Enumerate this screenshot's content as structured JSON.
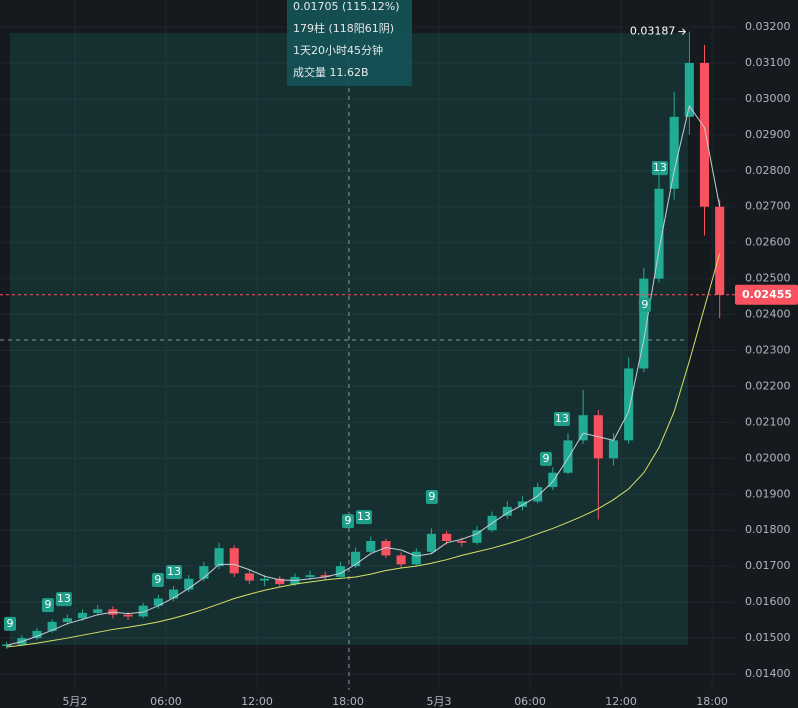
{
  "chart_data": {
    "type": "candlestick",
    "x": [
      -4.5,
      -3.5,
      -2.5,
      -1.5,
      -0.5,
      0.5,
      1.5,
      2.5,
      3.5,
      4.5,
      5.5,
      6.5,
      7.5,
      8.5,
      9.5,
      10.5,
      11.5,
      12.5,
      13.5,
      14.5,
      15.5,
      16.5,
      17.5,
      18.5,
      19.5,
      20.5,
      21.5,
      22.5,
      23.5,
      24.5,
      25.5,
      26.5,
      27.5,
      28.5,
      29.5,
      30.5,
      31.5,
      32.5,
      33.5,
      34.5,
      35.5,
      36.5,
      37.5,
      38.5,
      39.5,
      40.5,
      41.5,
      42.5
    ],
    "open": [
      0.01478,
      0.01482,
      0.015,
      0.0152,
      0.01545,
      0.01555,
      0.0157,
      0.0158,
      0.01565,
      0.0156,
      0.0159,
      0.0161,
      0.01635,
      0.01665,
      0.017,
      0.0175,
      0.0168,
      0.0166,
      0.01665,
      0.0165,
      0.0167,
      0.01675,
      0.0167,
      0.017,
      0.0174,
      0.0177,
      0.0173,
      0.01705,
      0.0174,
      0.0179,
      0.0177,
      0.01765,
      0.018,
      0.0184,
      0.01865,
      0.0188,
      0.0192,
      0.0196,
      0.0205,
      0.0212,
      0.02,
      0.0205,
      0.0225,
      0.025,
      0.0275,
      0.0295,
      0.031,
      0.027
    ],
    "high": [
      0.0149,
      0.01508,
      0.01528,
      0.01552,
      0.01565,
      0.0158,
      0.01592,
      0.01588,
      0.01572,
      0.01598,
      0.0162,
      0.01645,
      0.01675,
      0.01712,
      0.01765,
      0.01758,
      0.01688,
      0.01675,
      0.01672,
      0.0168,
      0.01688,
      0.01685,
      0.01712,
      0.01752,
      0.01782,
      0.01776,
      0.01738,
      0.0175,
      0.01805,
      0.01798,
      0.0178,
      0.01812,
      0.01852,
      0.0188,
      0.01895,
      0.01932,
      0.01975,
      0.0207,
      0.0219,
      0.02135,
      0.0207,
      0.0228,
      0.0253,
      0.028,
      0.0302,
      0.03187,
      0.0315,
      0.0272
    ],
    "low": [
      0.0147,
      0.01478,
      0.01495,
      0.01515,
      0.01538,
      0.01548,
      0.01562,
      0.01555,
      0.0155,
      0.01555,
      0.01582,
      0.01602,
      0.01628,
      0.01658,
      0.01692,
      0.0167,
      0.0165,
      0.01645,
      0.01642,
      0.01645,
      0.01662,
      0.0166,
      0.01665,
      0.01695,
      0.01732,
      0.01722,
      0.01695,
      0.017,
      0.01735,
      0.0176,
      0.01755,
      0.0176,
      0.01795,
      0.01832,
      0.01855,
      0.01875,
      0.01912,
      0.01955,
      0.0204,
      0.0183,
      0.0198,
      0.0204,
      0.0224,
      0.0249,
      0.0272,
      0.029,
      0.0262,
      0.0239
    ],
    "close": [
      0.01482,
      0.015,
      0.0152,
      0.01545,
      0.01555,
      0.0157,
      0.0158,
      0.01565,
      0.0156,
      0.0159,
      0.0161,
      0.01635,
      0.01665,
      0.017,
      0.0175,
      0.0168,
      0.0166,
      0.01665,
      0.0165,
      0.0167,
      0.01675,
      0.0167,
      0.017,
      0.0174,
      0.0177,
      0.0173,
      0.01705,
      0.0174,
      0.0179,
      0.0177,
      0.01765,
      0.018,
      0.0184,
      0.01865,
      0.0188,
      0.0192,
      0.0196,
      0.0205,
      0.0212,
      0.02,
      0.0205,
      0.0225,
      0.025,
      0.0275,
      0.0295,
      0.031,
      0.027,
      0.02455
    ],
    "up_color": "#22ab94",
    "down_color": "#f7525f",
    "lines": [
      {
        "color": "#c7cdd6",
        "values": [
          0.0148,
          0.0149,
          0.01505,
          0.01522,
          0.0154,
          0.01552,
          0.01565,
          0.01572,
          0.01568,
          0.01572,
          0.0159,
          0.01612,
          0.01638,
          0.01668,
          0.01705,
          0.01705,
          0.0169,
          0.01672,
          0.01662,
          0.0166,
          0.01665,
          0.0167,
          0.0168,
          0.01705,
          0.01735,
          0.01752,
          0.01745,
          0.01728,
          0.01735,
          0.01765,
          0.01775,
          0.0179,
          0.0182,
          0.01848,
          0.0187,
          0.01895,
          0.01935,
          0.02,
          0.0207,
          0.0206,
          0.0205,
          0.0213,
          0.0233,
          0.0258,
          0.028,
          0.0298,
          0.0292,
          0.027
        ]
      },
      {
        "color": "#d8e067",
        "values": [
          0.01475,
          0.0148,
          0.01486,
          0.01493,
          0.015,
          0.01508,
          0.01516,
          0.01524,
          0.0153,
          0.01537,
          0.01545,
          0.01555,
          0.01567,
          0.0158,
          0.01595,
          0.0161,
          0.01622,
          0.01633,
          0.01642,
          0.0165,
          0.01656,
          0.01662,
          0.01666,
          0.0167,
          0.01678,
          0.01688,
          0.01695,
          0.017,
          0.01708,
          0.01718,
          0.0173,
          0.0174,
          0.0175,
          0.01762,
          0.01775,
          0.0179,
          0.01805,
          0.01822,
          0.0184,
          0.0186,
          0.01885,
          0.01915,
          0.0196,
          0.0203,
          0.0213,
          0.0227,
          0.0242,
          0.0257
        ]
      }
    ],
    "markers": [
      {
        "label": "9",
        "x": -4.28,
        "y": 0.0152
      },
      {
        "label": "9",
        "x": -1.78,
        "y": 0.01572
      },
      {
        "label": "13",
        "x": -0.73,
        "y": 0.01589
      },
      {
        "label": "9",
        "x": 5.47,
        "y": 0.01642
      },
      {
        "label": "13",
        "x": 6.53,
        "y": 0.01664
      },
      {
        "label": "9",
        "x": 18.0,
        "y": 0.01806
      },
      {
        "label": "13",
        "x": 19.05,
        "y": 0.01817
      },
      {
        "label": "9",
        "x": 23.53,
        "y": 0.01873
      },
      {
        "label": "9",
        "x": 31.05,
        "y": 0.01979
      },
      {
        "label": "13",
        "x": 32.1,
        "y": 0.0209
      },
      {
        "label": "9",
        "x": 37.57,
        "y": 0.02407
      },
      {
        "label": "13",
        "x": 38.56,
        "y": 0.02788
      }
    ],
    "tooltip": [
      "0.01705 (115.12%)",
      "179柱 (118阳61阴)",
      "1天20小时45分钟",
      "成交量 11.62B"
    ],
    "xlim": [
      -4.94,
      43.51
    ],
    "xticks": [
      {
        "value": 0,
        "label": "5月2"
      },
      {
        "value": 6,
        "label": "06:00"
      },
      {
        "value": 12,
        "label": "12:00"
      },
      {
        "value": 18,
        "label": "18:00"
      },
      {
        "value": 24,
        "label": "5月3"
      },
      {
        "value": 30,
        "label": "06:00"
      },
      {
        "value": 36,
        "label": "12:00"
      },
      {
        "value": 42,
        "label": "18:00"
      }
    ],
    "ylim": [
      0.013555,
      0.032751
    ],
    "yticks": [
      {
        "value": 0.014,
        "label": "0.01400"
      },
      {
        "value": 0.015,
        "label": "0.01500"
      },
      {
        "value": 0.016,
        "label": "0.01600"
      },
      {
        "value": 0.017,
        "label": "0.01700"
      },
      {
        "value": 0.018,
        "label": "0.01800"
      },
      {
        "value": 0.019,
        "label": "0.01900"
      },
      {
        "value": 0.02,
        "label": "0.02000"
      },
      {
        "value": 0.021,
        "label": "0.02100"
      },
      {
        "value": 0.022,
        "label": "0.02200"
      },
      {
        "value": 0.023,
        "label": "0.02300"
      },
      {
        "value": 0.024,
        "label": "0.02400"
      },
      {
        "value": 0.025,
        "label": "0.02500"
      },
      {
        "value": 0.026,
        "label": "0.02600"
      },
      {
        "value": 0.027,
        "label": "0.02700"
      },
      {
        "value": 0.028,
        "label": "0.02800"
      },
      {
        "value": 0.029,
        "label": "0.02900"
      },
      {
        "value": 0.03,
        "label": "0.03000"
      },
      {
        "value": 0.031,
        "label": "0.03100"
      },
      {
        "value": 0.032,
        "label": "0.03200"
      }
    ],
    "grid": true
  }
}
